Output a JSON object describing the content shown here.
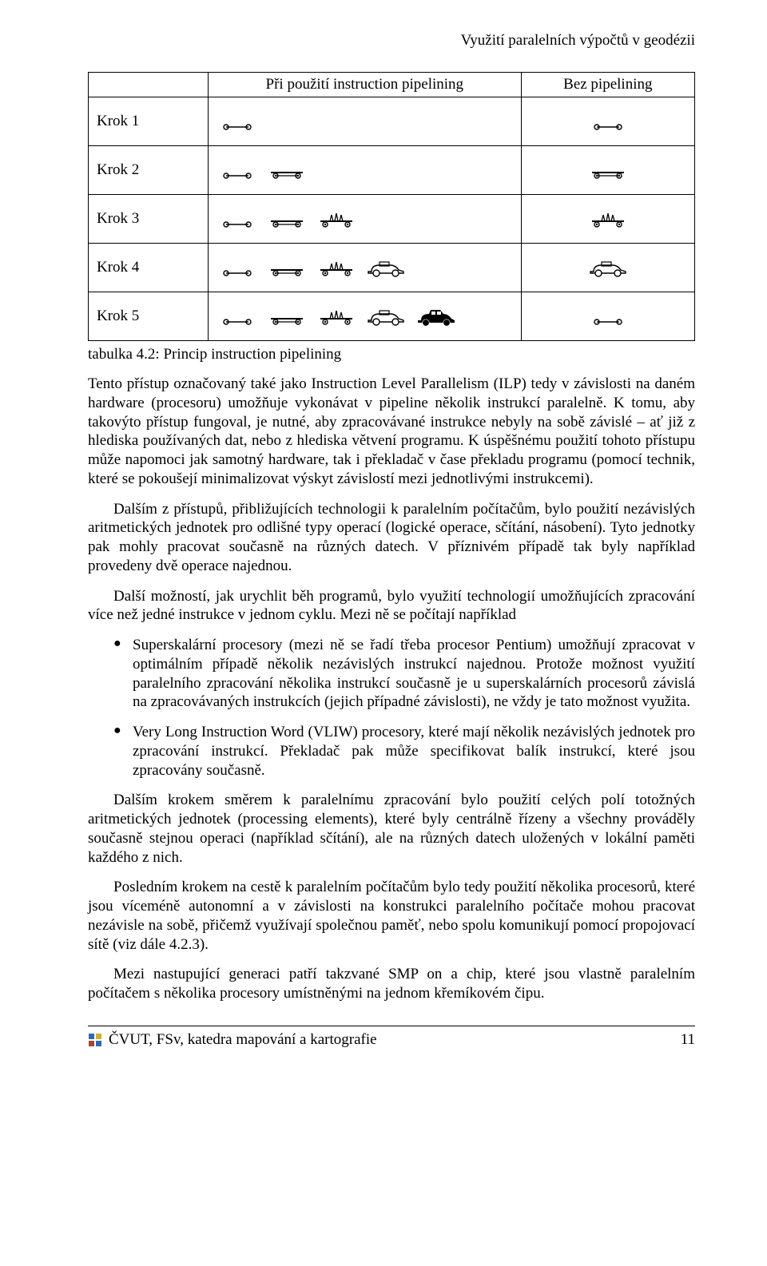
{
  "running_head": "Využití paralelních výpočtů v geodézii",
  "pipeline_table": {
    "col_headers": [
      "",
      "Při použití instruction pipelining",
      "Bez pipelining"
    ],
    "row_labels": [
      "Krok 1",
      "Krok 2",
      "Krok 3",
      "Krok 4",
      "Krok 5"
    ],
    "caption": "tabulka 4.2: Princip instruction pipelining",
    "stages_with": [
      [
        "chassis"
      ],
      [
        "chassis",
        "wheels"
      ],
      [
        "chassis",
        "wheels",
        "engine"
      ],
      [
        "chassis",
        "wheels",
        "engine",
        "body"
      ],
      [
        "chassis",
        "wheels",
        "engine",
        "body",
        "full"
      ]
    ],
    "stages_bez": [
      [
        "chassis"
      ],
      [
        "wheels"
      ],
      [
        "engine"
      ],
      [
        "body"
      ],
      [
        "chassis"
      ]
    ],
    "stage_colors": {
      "outline": "#000000",
      "fill": "#000000",
      "bg": "#ffffff"
    }
  },
  "paragraphs": {
    "p1": "Tento přístup označovaný také jako Instruction Level Parallelism (ILP) tedy v závislosti na daném hardware (procesoru) umožňuje vykonávat v pipeline několik instrukcí paralelně. K tomu, aby takovýto přístup fungoval, je nutné, aby zpracovávané instrukce nebyly na sobě závislé – ať již z hlediska používaných dat, nebo z hlediska větvení programu. K úspěšnému použití tohoto přístupu může napomoci jak samotný hardware, tak i překladač v čase překladu programu (pomocí technik, které se pokoušejí minimalizovat výskyt závislostí mezi jednotlivými instrukcemi).",
    "p2": "Dalším z přístupů, přibližujících technologii k paralelním počítačům, bylo použití nezávislých aritmetických jednotek pro odlišné typy operací (logické operace, sčítání, násobení). Tyto jednotky pak mohly pracovat současně na různých datech. V příznivém případě tak byly například provedeny dvě operace najednou.",
    "p3": "Další možností, jak urychlit běh programů, bylo využití technologií umožňujících zpracování více než jedné instrukce v jednom cyklu. Mezi ně se počítají například",
    "b1": "Superskalární procesory (mezi ně se řadí třeba procesor Pentium) umožňují zpracovat v optimálním případě několik nezávislých instrukcí najednou. Protože možnost využití paralelního zpracování několika instrukcí současně je u superskalárních procesorů závislá na zpracovávaných instrukcích (jejich případné závislosti), ne vždy je tato možnost využita.",
    "b2": "Very Long Instruction Word (VLIW) procesory, které mají několik nezávislých jednotek pro zpracování instrukcí. Překladač pak může specifikovat balík instrukcí, které jsou zpracovány současně.",
    "p4": "Dalším krokem směrem k paralelnímu zpracování bylo použití celých polí totožných aritmetických jednotek (processing elements), které byly centrálně řízeny a všechny prováděly současně stejnou operaci (například sčítání), ale na různých datech uložených v lokální paměti každého z nich.",
    "p5": "Posledním krokem na cestě k paralelním počítačům bylo tedy použití několika procesorů, které jsou víceméně autonomní a v závislosti na konstrukci paralelního počítače mohou pracovat nezávisle na sobě, přičemž využívají společnou paměť, nebo spolu komunikují pomocí propojovací sítě (viz dále 4.2.3).",
    "p6": "Mezi nastupující generaci patří takzvané SMP on a chip, které jsou vlastně paralelním počítačem s několika procesory umístněnými na jednom křemíkovém čipu."
  },
  "footer": {
    "left_text": "ČVUT, FSv, katedra mapování a kartografie",
    "page_number": "11",
    "icon_colors": {
      "a": "#2a6bb0",
      "b": "#a14a2a",
      "c": "#d0b030"
    }
  }
}
